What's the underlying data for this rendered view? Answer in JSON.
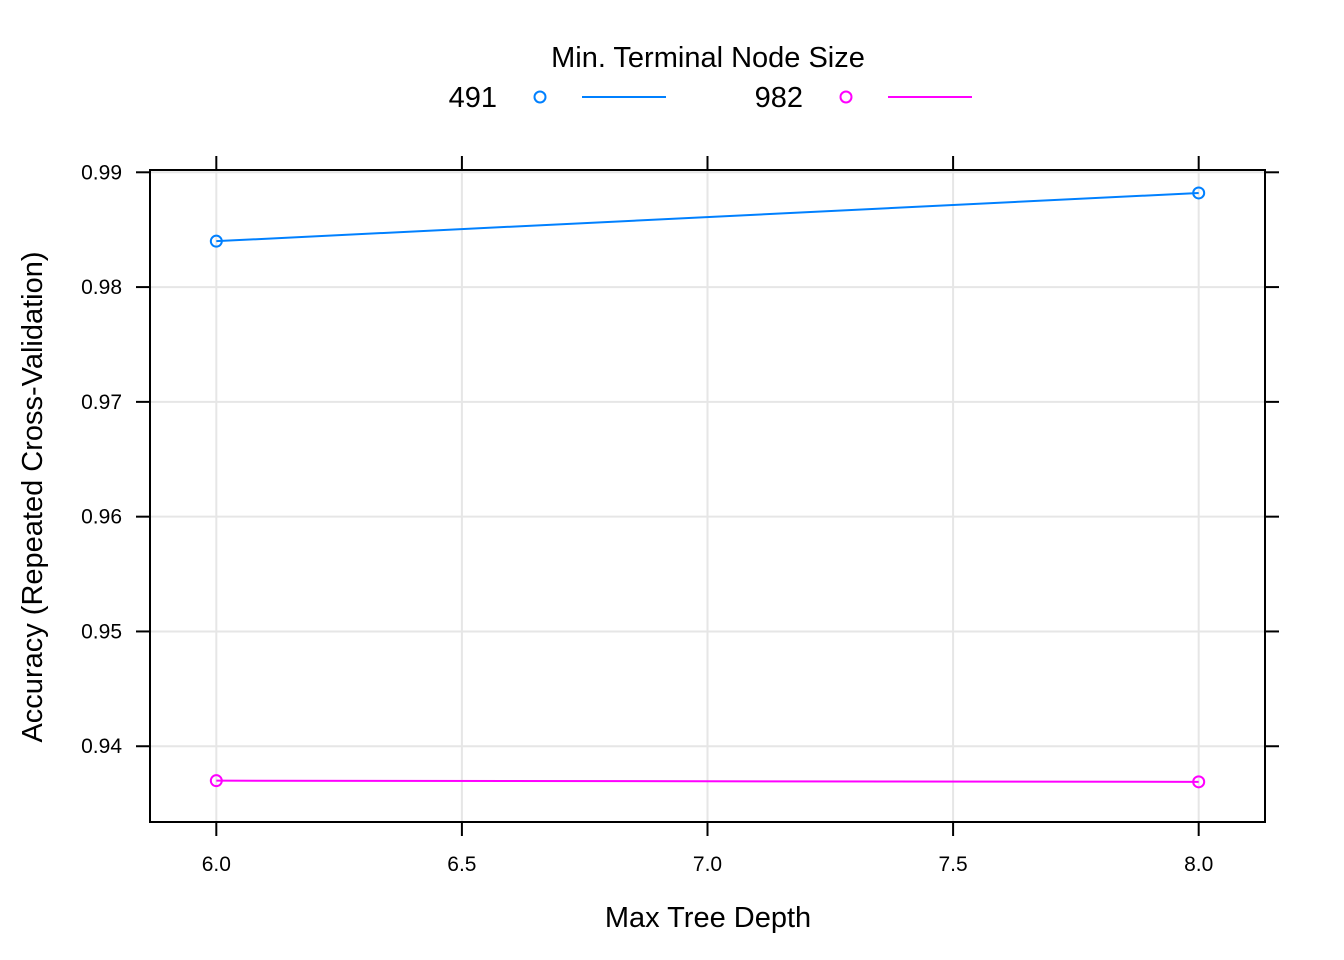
{
  "chart_data": {
    "type": "line",
    "xlabel": "Max Tree Depth",
    "ylabel": "Accuracy (Repeated Cross-Validation)",
    "xlim": [
      5.865,
      8.135
    ],
    "ylim": [
      0.9334,
      0.9902
    ],
    "x_ticks": [
      6.0,
      6.5,
      7.0,
      7.5,
      8.0
    ],
    "x_tick_labels": [
      "6.0",
      "6.5",
      "7.0",
      "7.5",
      "8.0"
    ],
    "y_ticks": [
      0.94,
      0.95,
      0.96,
      0.97,
      0.98,
      0.99
    ],
    "y_tick_labels": [
      "0.94",
      "0.95",
      "0.96",
      "0.97",
      "0.98",
      "0.99"
    ],
    "grid": true,
    "legend": {
      "title": "Min. Terminal Node Size",
      "placement": "top"
    },
    "series": [
      {
        "name": "491",
        "color": "#0080ff",
        "x": [
          6.0,
          8.0
        ],
        "y": [
          0.984,
          0.9882
        ]
      },
      {
        "name": "982",
        "color": "#ff00ff",
        "x": [
          6.0,
          8.0
        ],
        "y": [
          0.937,
          0.9369
        ]
      }
    ]
  }
}
